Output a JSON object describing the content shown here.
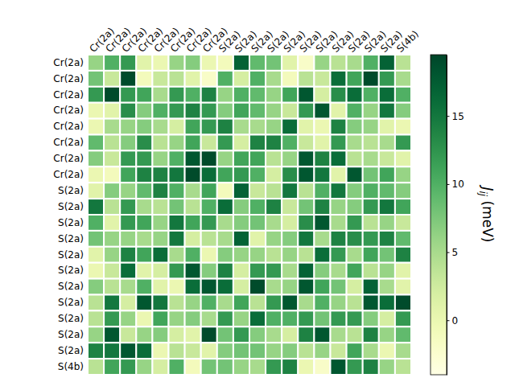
{
  "chart_data": {
    "type": "heatmap",
    "color": "YlGn",
    "x_categories": [
      "Cr(2a)",
      "Cr(2a)",
      "Cr(2a)",
      "Cr(2a)",
      "Cr(2a)",
      "Cr(2a)",
      "Cr(2a)",
      "Cr(2a)",
      "S(2a)",
      "S(2a)",
      "S(2a)",
      "S(2a)",
      "S(2a)",
      "S(2a)",
      "S(2a)",
      "S(2a)",
      "S(2a)",
      "S(2a)",
      "S(2a)",
      "S(4b)"
    ],
    "y_categories": [
      "Cr(2a)",
      "Cr(2a)",
      "Cr(2a)",
      "Cr(2a)",
      "Cr(2a)",
      "Cr(2a)",
      "Cr(2a)",
      "Cr(2a)",
      "S(2a)",
      "S(2a)",
      "S(2a)",
      "S(2a)",
      "S(2a)",
      "S(2a)",
      "S(2a)",
      "S(2a)",
      "S(2a)",
      "S(2a)",
      "S(2a)",
      "S(4b)"
    ],
    "values": [
      [
        6,
        10,
        12,
        1,
        0,
        6,
        7,
        0,
        -1,
        17,
        9,
        8,
        1,
        -2,
        6,
        4,
        5,
        10,
        17,
        4
      ],
      [
        8,
        3,
        19,
        -1,
        3,
        4,
        1,
        -2,
        10,
        2,
        10,
        5,
        -1,
        4,
        3,
        16,
        11,
        19,
        12,
        5
      ],
      [
        12,
        19,
        12,
        11,
        5,
        12,
        10,
        14,
        6,
        10,
        9,
        6,
        11,
        18,
        2,
        13,
        16,
        10,
        16,
        10
      ],
      [
        0,
        1,
        13,
        7,
        10,
        12,
        14,
        12,
        7,
        11,
        9,
        6,
        3,
        12,
        18,
        1,
        10,
        6,
        15,
        7
      ],
      [
        0,
        5,
        6,
        7,
        5,
        2,
        11,
        12,
        14,
        5,
        5,
        6,
        16,
        1,
        0,
        14,
        7,
        6,
        1,
        0
      ],
      [
        9,
        4,
        7,
        13,
        4,
        6,
        11,
        3,
        12,
        2,
        14,
        14,
        10,
        3,
        1,
        12,
        5,
        4,
        5,
        12
      ],
      [
        7,
        3,
        12,
        12,
        6,
        10,
        18,
        19,
        6,
        11,
        11,
        4,
        6,
        18,
        14,
        16,
        4,
        5,
        3,
        1
      ],
      [
        0,
        -1,
        11,
        14,
        14,
        15,
        19,
        16,
        11,
        12,
        10,
        2,
        13,
        18,
        15,
        1,
        18,
        8,
        11,
        6
      ],
      [
        1,
        7,
        6,
        9,
        14,
        10,
        5,
        11,
        -1,
        17,
        3,
        4,
        15,
        4,
        10,
        15,
        7,
        10,
        9,
        7
      ],
      [
        15,
        4,
        12,
        5,
        4,
        8,
        4,
        10,
        16,
        7,
        10,
        14,
        3,
        8,
        14,
        6,
        7,
        12,
        15,
        11
      ],
      [
        10,
        1,
        12,
        11,
        6,
        15,
        11,
        12,
        5,
        7,
        8,
        5,
        2,
        13,
        18,
        5,
        12,
        4,
        6,
        3
      ],
      [
        8,
        6,
        6,
        5,
        6,
        15,
        2,
        4,
        5,
        17,
        1,
        6,
        7,
        15,
        5,
        14,
        13,
        12,
        14,
        9
      ],
      [
        1,
        6,
        14,
        11,
        16,
        5,
        10,
        0,
        7,
        6,
        6,
        4,
        6,
        4,
        16,
        12,
        5,
        11,
        8,
        14
      ],
      [
        0,
        3,
        16,
        1,
        2,
        12,
        18,
        7,
        14,
        2,
        12,
        12,
        5,
        17,
        7,
        5,
        11,
        4,
        6,
        1
      ],
      [
        7,
        4,
        5,
        10,
        1,
        0,
        16,
        18,
        16,
        2,
        19,
        5,
        6,
        18,
        11,
        8,
        2,
        17,
        5,
        1
      ],
      [
        4,
        15,
        2,
        18,
        15,
        4,
        6,
        10,
        5,
        11,
        4,
        12,
        18,
        5,
        10,
        6,
        4,
        18,
        16,
        19
      ],
      [
        4,
        12,
        6,
        0,
        11,
        6,
        7,
        5,
        12,
        6,
        16,
        10,
        10,
        12,
        8,
        12,
        12,
        7,
        2,
        12
      ],
      [
        6,
        18,
        3,
        6,
        7,
        2,
        1,
        19,
        8,
        12,
        7,
        5,
        2,
        14,
        18,
        5,
        4,
        14,
        6,
        9
      ],
      [
        14,
        15,
        18,
        16,
        0,
        4,
        3,
        1,
        7,
        8,
        8,
        6,
        7,
        4,
        6,
        3,
        11,
        5,
        0,
        5
      ],
      [
        4,
        11,
        12,
        6,
        2,
        10,
        -1,
        8,
        8,
        6,
        5,
        12,
        14,
        0,
        -2,
        18,
        12,
        14,
        6,
        4
      ]
    ],
    "colorbar": {
      "label": "Jij (meV)",
      "range": [
        -4,
        19.5
      ],
      "ticks": [
        0,
        5,
        10,
        15
      ]
    }
  }
}
